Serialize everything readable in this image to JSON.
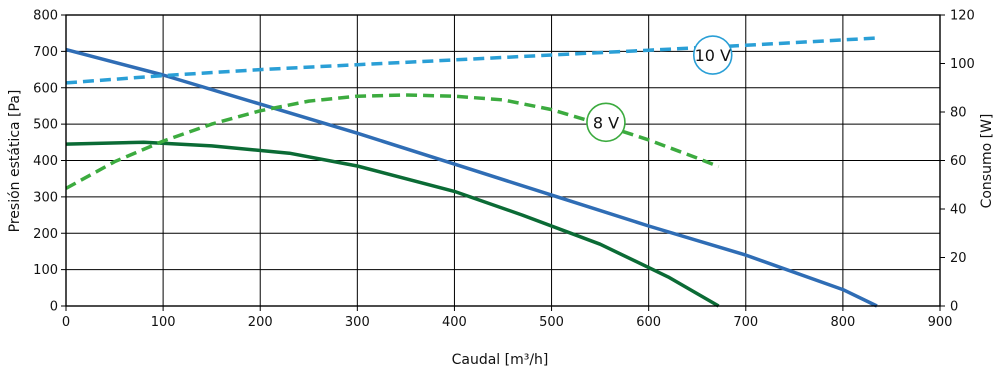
{
  "chart_data": {
    "type": "line",
    "title": "",
    "xlabel": "Caudal [m³/h]",
    "ylabel_left": "Presión estática [Pa]",
    "ylabel_right": "Consumo [W]",
    "xlim": [
      0,
      900
    ],
    "ylim_left": [
      0,
      800
    ],
    "ylim_right": [
      0,
      120
    ],
    "x_ticks": [
      0,
      100,
      200,
      300,
      400,
      500,
      600,
      700,
      800,
      900
    ],
    "y_ticks_left": [
      0,
      100,
      200,
      300,
      400,
      500,
      600,
      700,
      800
    ],
    "y_ticks_right": [
      0,
      20,
      40,
      60,
      80,
      100,
      120
    ],
    "grid": true,
    "series": [
      {
        "axis": "left",
        "style": "solid",
        "color": "#2f6db5",
        "x": [
          0,
          100,
          200,
          300,
          400,
          500,
          600,
          700,
          800,
          835
        ],
        "y": [
          705,
          635,
          555,
          475,
          390,
          305,
          220,
          140,
          45,
          0
        ]
      },
      {
        "axis": "left",
        "style": "solid",
        "color": "#0b6b35",
        "x": [
          0,
          80,
          150,
          230,
          300,
          400,
          470,
          550,
          620,
          672
        ],
        "y": [
          445,
          450,
          440,
          420,
          385,
          315,
          250,
          170,
          80,
          0
        ]
      },
      {
        "axis": "right",
        "style": "dashed",
        "color": "#2a9fd6",
        "x": [
          0,
          100,
          200,
          300,
          400,
          500,
          600,
          700,
          835
        ],
        "y": [
          92,
          95,
          97.5,
          99.5,
          101.5,
          103.5,
          105.5,
          107.5,
          110.5
        ]
      },
      {
        "axis": "right",
        "style": "dashed",
        "color": "#3cab3f",
        "x": [
          0,
          50,
          100,
          150,
          200,
          250,
          300,
          350,
          400,
          450,
          500,
          550,
          600,
          650,
          672
        ],
        "y": [
          48.5,
          59.5,
          68,
          75,
          80.5,
          84.5,
          86.5,
          87,
          86.5,
          85,
          81,
          75,
          68.5,
          61,
          57.5
        ]
      }
    ],
    "annotations": [
      {
        "text": "10 V",
        "x": 666,
        "y_left": 690,
        "color": "#2a9fd6"
      },
      {
        "text": "8 V",
        "x": 556,
        "y_left": 505,
        "color": "#3cab3f"
      }
    ]
  }
}
